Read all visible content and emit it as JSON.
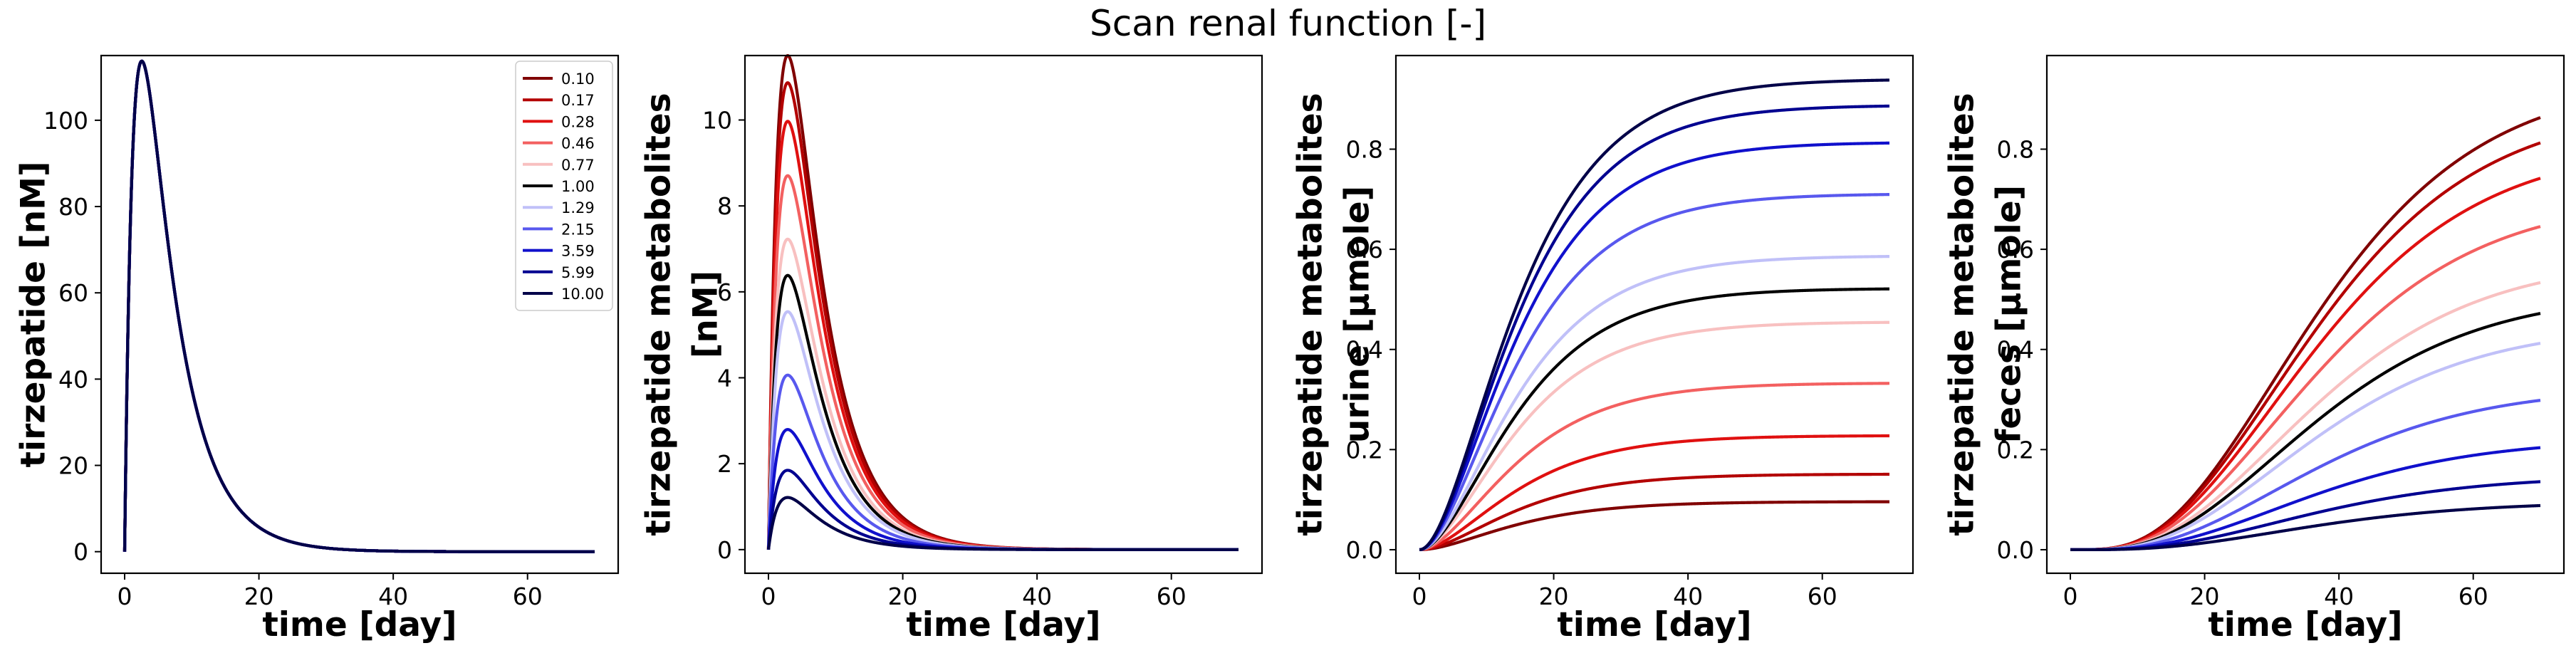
{
  "figure": {
    "suptitle": "Scan renal function [-]"
  },
  "legend": {
    "location": "upper right of first panel",
    "entries": [
      "0.10",
      "0.17",
      "0.28",
      "0.46",
      "0.77",
      "1.00",
      "1.29",
      "2.15",
      "3.59",
      "5.99",
      "10.00"
    ]
  },
  "colors": [
    "#800000",
    "#b30000",
    "#e01010",
    "#f36060",
    "#f8c0c0",
    "#000000",
    "#c0c0f8",
    "#5858ee",
    "#1010cc",
    "#000090",
    "#000048"
  ],
  "chart_data": [
    {
      "type": "line",
      "ylabel": [
        "tirzepatide [nM]"
      ],
      "xlabel": "time [day]",
      "xlim": [
        -3.5,
        73.5
      ],
      "ylim": [
        -5,
        115
      ],
      "xticks": [
        0,
        20,
        40,
        60
      ],
      "yticks": [
        0,
        20,
        40,
        60,
        80,
        100
      ],
      "grid": false,
      "model": "pk",
      "shape": {
        "ka": 0.7,
        "ke": 0.19,
        "tmax": 3.4
      },
      "series": [
        {
          "name": "0.10",
          "peak": 109.5
        },
        {
          "name": "0.17",
          "peak": 109.5
        },
        {
          "name": "0.28",
          "peak": 109.5
        },
        {
          "name": "0.46",
          "peak": 109.5
        },
        {
          "name": "0.77",
          "peak": 109.5
        },
        {
          "name": "1.00",
          "peak": 109.5
        },
        {
          "name": "1.29",
          "peak": 109.5
        },
        {
          "name": "2.15",
          "peak": 109.5
        },
        {
          "name": "3.59",
          "peak": 109.5
        },
        {
          "name": "5.99",
          "peak": 109.5
        },
        {
          "name": "10.00",
          "peak": 109.5
        }
      ]
    },
    {
      "type": "line",
      "ylabel": [
        "tirzepatide metabolites",
        "[nM]"
      ],
      "xlabel": "time [day]",
      "xlim": [
        -3.5,
        73.5
      ],
      "ylim": [
        -0.55,
        11.5
      ],
      "xticks": [
        0,
        20,
        40,
        60
      ],
      "yticks": [
        0,
        2,
        4,
        6,
        8,
        10
      ],
      "grid": false,
      "model": "pk",
      "shape": {
        "ka": 0.6,
        "ke": 0.18,
        "tmax": 4.0
      },
      "series": [
        {
          "name": "0.10",
          "peak": 10.9
        },
        {
          "name": "0.17",
          "peak": 10.3
        },
        {
          "name": "0.28",
          "peak": 9.45
        },
        {
          "name": "0.46",
          "peak": 8.25
        },
        {
          "name": "0.77",
          "peak": 6.85
        },
        {
          "name": "1.00",
          "peak": 6.05
        },
        {
          "name": "1.29",
          "peak": 5.25
        },
        {
          "name": "2.15",
          "peak": 3.85
        },
        {
          "name": "3.59",
          "peak": 2.65
        },
        {
          "name": "5.99",
          "peak": 1.75
        },
        {
          "name": "10.00",
          "peak": 1.15
        }
      ]
    },
    {
      "type": "line",
      "ylabel": [
        "tirzepatide metabolites",
        "urine [µmole]"
      ],
      "xlabel": "time [day]",
      "xlim": [
        -3.5,
        73.5
      ],
      "ylim": [
        -0.047,
        0.987
      ],
      "xticks": [
        0,
        20,
        40,
        60
      ],
      "yticks": [
        0.0,
        0.2,
        0.4,
        0.6,
        0.8
      ],
      "yticklabels": [
        "0.0",
        "0.2",
        "0.4",
        "0.6",
        "0.8"
      ],
      "grid": false,
      "model": "cum",
      "shape": {
        "k": 0.12,
        "n": 1.8
      },
      "series": [
        {
          "name": "0.10",
          "plateau": 0.096
        },
        {
          "name": "0.17",
          "plateau": 0.151
        },
        {
          "name": "0.28",
          "plateau": 0.228
        },
        {
          "name": "0.46",
          "plateau": 0.333
        },
        {
          "name": "0.77",
          "plateau": 0.455
        },
        {
          "name": "1.00",
          "plateau": 0.522
        },
        {
          "name": "1.29",
          "plateau": 0.587
        },
        {
          "name": "2.15",
          "plateau": 0.711
        },
        {
          "name": "3.59",
          "plateau": 0.814
        },
        {
          "name": "5.99",
          "plateau": 0.888
        },
        {
          "name": "10.00",
          "plateau": 0.94
        }
      ]
    },
    {
      "type": "line",
      "ylabel": [
        "tirzepatide metabolites",
        "feces [µmole]"
      ],
      "xlabel": "time [day]",
      "xlim": [
        -3.5,
        73.5
      ],
      "ylim": [
        -0.047,
        0.987
      ],
      "xticks": [
        0,
        20,
        40,
        60
      ],
      "yticks": [
        0.0,
        0.2,
        0.4,
        0.6,
        0.8
      ],
      "yticklabels": [
        "0.0",
        "0.2",
        "0.4",
        "0.6",
        "0.8"
      ],
      "grid": false,
      "model": "cum",
      "shape": {
        "k": 0.1,
        "n": 3.3
      },
      "series": [
        {
          "name": "0.10",
          "plateau": 0.94
        },
        {
          "name": "0.17",
          "plateau": 0.885
        },
        {
          "name": "0.28",
          "plateau": 0.808
        },
        {
          "name": "0.46",
          "plateau": 0.703
        },
        {
          "name": "0.77",
          "plateau": 0.581
        },
        {
          "name": "1.00",
          "plateau": 0.514
        },
        {
          "name": "1.29",
          "plateau": 0.449
        },
        {
          "name": "2.15",
          "plateau": 0.325
        },
        {
          "name": "3.59",
          "plateau": 0.222
        },
        {
          "name": "5.99",
          "plateau": 0.148
        },
        {
          "name": "10.00",
          "plateau": 0.096
        }
      ]
    }
  ]
}
